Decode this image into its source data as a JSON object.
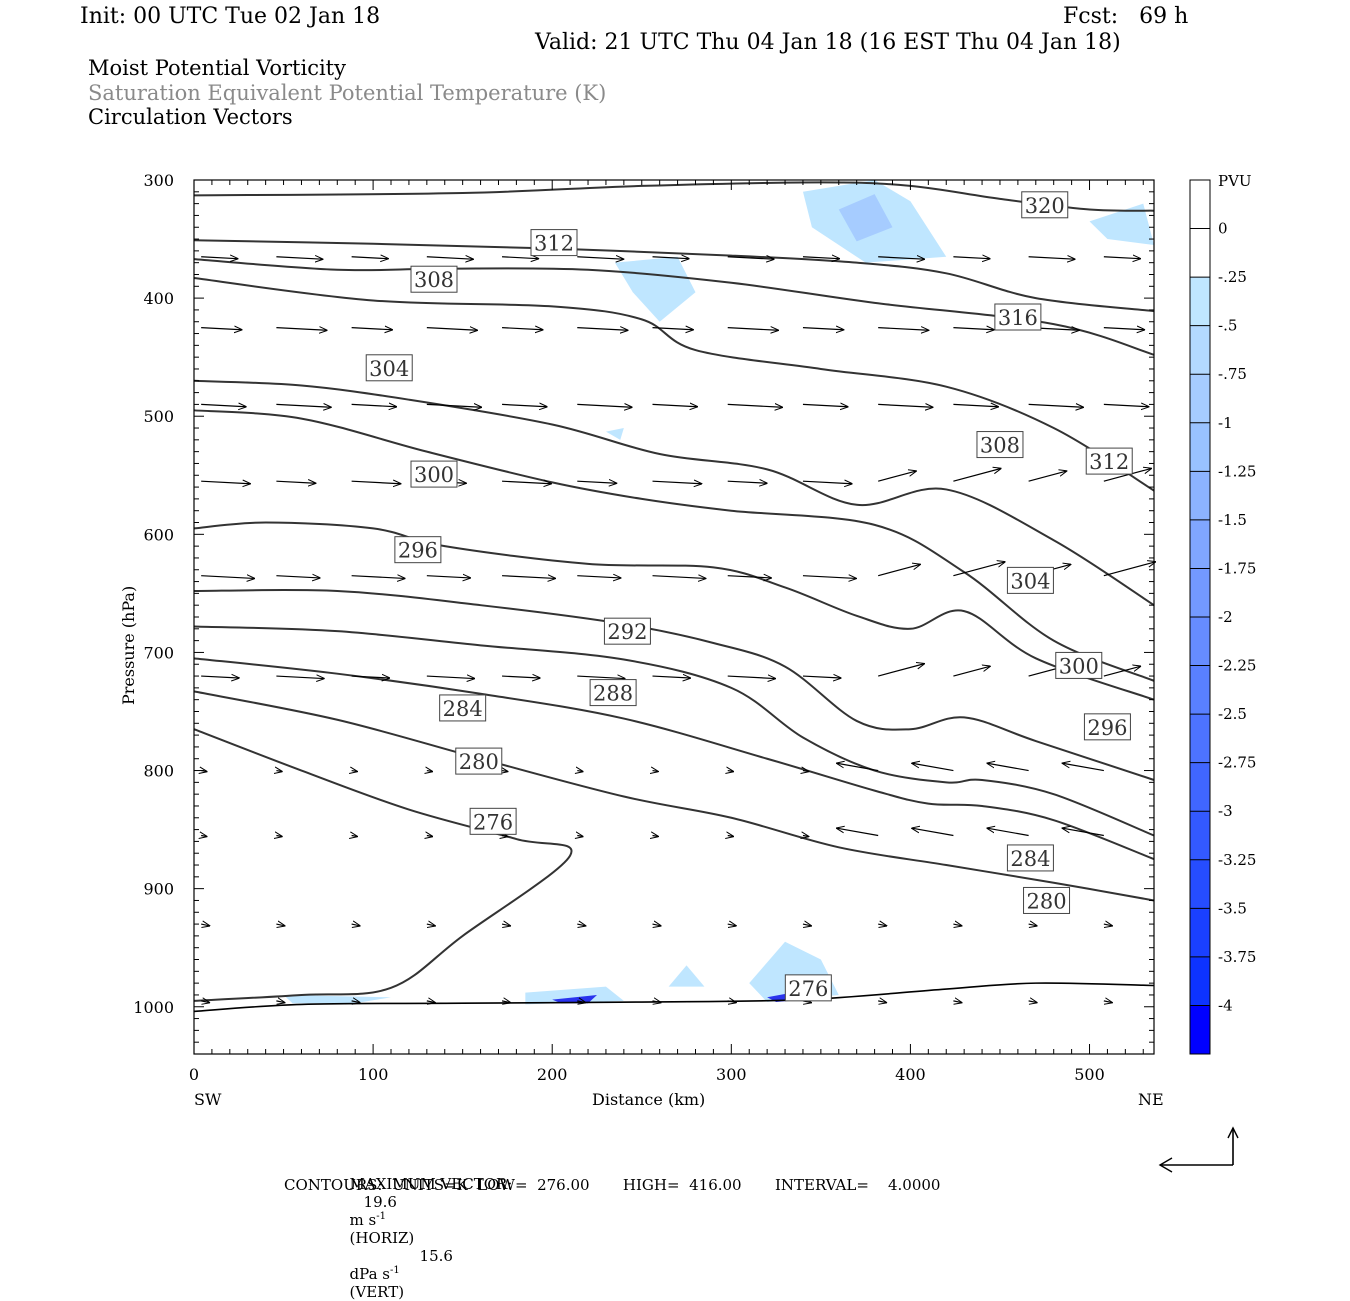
{
  "header": {
    "init": "Init: 00 UTC Tue 02 Jan 18",
    "fcst": "Fcst:   69 h",
    "valid": "Valid: 21 UTC Thu 04 Jan 18 (16 EST Thu 04 Jan 18)",
    "line1": "Moist Potential Vorticity",
    "line2": "Saturation Equivalent Potential Temperature (K)",
    "line3": "Circulation Vectors"
  },
  "footer": {
    "max_vector_label": "MAXIMUM VECTOR:",
    "horiz_value": "19.6",
    "horiz_unit": "m s",
    "horiz_tag": "(HORIZ)",
    "vert_value": "15.6",
    "vert_unit": "dPa s",
    "vert_tag": "(VERT)",
    "exp": "-1",
    "contours": "CONTOURS:  UNITS=K  LOW=  276.00       HIGH=  416.00       INTERVAL=    4.0000"
  },
  "chart_data": {
    "type": "cross-section",
    "xlabel": "Distance (km)",
    "ylabel": "Pressure (hPa)",
    "x_left_label": "SW",
    "x_right_label": "NE",
    "xlim": [
      0,
      536
    ],
    "ylim": [
      1040,
      300
    ],
    "x_ticks": [
      0,
      100,
      200,
      300,
      400,
      500
    ],
    "y_ticks": [
      300,
      400,
      500,
      600,
      700,
      800,
      900,
      1000
    ],
    "colorbar": {
      "unit": "PVU",
      "levels": [
        "0",
        "-.25",
        "-.5",
        "-.75",
        "-1",
        "-1.25",
        "-1.5",
        "-1.75",
        "-2",
        "-2.25",
        "-2.5",
        "-2.75",
        "-3",
        "-3.25",
        "-3.5",
        "-3.75",
        "-4"
      ],
      "colors": [
        "#ffffff",
        "#ffffff",
        "#bfe6ff",
        "#b3d9ff",
        "#a6ccff",
        "#99c2ff",
        "#8cb3ff",
        "#80a6ff",
        "#7399ff",
        "#668cff",
        "#5980ff",
        "#4d73ff",
        "#4066ff",
        "#3359ff",
        "#264dff",
        "#1a40ff",
        "#0d33ff",
        "#0000ff"
      ]
    },
    "contour_labels": [
      {
        "text": "320",
        "x": 475,
        "p": 321
      },
      {
        "text": "312",
        "x": 201,
        "p": 353
      },
      {
        "text": "308",
        "x": 134,
        "p": 384
      },
      {
        "text": "316",
        "x": 460,
        "p": 416
      },
      {
        "text": "304",
        "x": 109,
        "p": 459
      },
      {
        "text": "308",
        "x": 450,
        "p": 524
      },
      {
        "text": "312",
        "x": 511,
        "p": 538
      },
      {
        "text": "300",
        "x": 134,
        "p": 549
      },
      {
        "text": "296",
        "x": 125,
        "p": 613
      },
      {
        "text": "304",
        "x": 467,
        "p": 639
      },
      {
        "text": "292",
        "x": 242,
        "p": 682
      },
      {
        "text": "300",
        "x": 494,
        "p": 711
      },
      {
        "text": "288",
        "x": 234,
        "p": 734
      },
      {
        "text": "284",
        "x": 150,
        "p": 747
      },
      {
        "text": "296",
        "x": 510,
        "p": 763
      },
      {
        "text": "280",
        "x": 159,
        "p": 792
      },
      {
        "text": "276",
        "x": 167,
        "p": 843
      },
      {
        "text": "284",
        "x": 467,
        "p": 874
      },
      {
        "text": "280",
        "x": 476,
        "p": 910
      },
      {
        "text": "276",
        "x": 343,
        "p": 984
      }
    ],
    "theta_e_contours": [
      [
        [
          0,
          313
        ],
        [
          150,
          311
        ],
        [
          250,
          305
        ],
        [
          350,
          302
        ],
        [
          400,
          305
        ],
        [
          450,
          316
        ],
        [
          500,
          325
        ],
        [
          536,
          326
        ]
      ],
      [
        [
          0,
          351
        ],
        [
          100,
          354
        ],
        [
          200,
          358
        ],
        [
          300,
          364
        ],
        [
          370,
          370
        ],
        [
          420,
          379
        ],
        [
          470,
          400
        ],
        [
          536,
          411
        ]
      ],
      [
        [
          0,
          367
        ],
        [
          80,
          376
        ],
        [
          140,
          375
        ],
        [
          220,
          376
        ],
        [
          300,
          387
        ],
        [
          380,
          404
        ],
        [
          480,
          422
        ],
        [
          536,
          448
        ]
      ],
      [
        [
          0,
          383
        ],
        [
          100,
          402
        ],
        [
          200,
          407
        ],
        [
          250,
          418
        ],
        [
          280,
          444
        ],
        [
          350,
          460
        ],
        [
          420,
          475
        ],
        [
          480,
          510
        ],
        [
          536,
          563
        ]
      ],
      [
        [
          0,
          470
        ],
        [
          60,
          474
        ],
        [
          120,
          486
        ],
        [
          200,
          507
        ],
        [
          260,
          532
        ],
        [
          320,
          545
        ],
        [
          370,
          575
        ],
        [
          420,
          562
        ],
        [
          480,
          605
        ],
        [
          536,
          660
        ]
      ],
      [
        [
          0,
          495
        ],
        [
          60,
          502
        ],
        [
          130,
          530
        ],
        [
          200,
          556
        ],
        [
          250,
          570
        ],
        [
          300,
          580
        ],
        [
          380,
          592
        ],
        [
          430,
          632
        ],
        [
          480,
          690
        ],
        [
          536,
          724
        ]
      ],
      [
        [
          0,
          595
        ],
        [
          40,
          590
        ],
        [
          100,
          595
        ],
        [
          140,
          610
        ],
        [
          220,
          625
        ],
        [
          290,
          628
        ],
        [
          330,
          645
        ],
        [
          370,
          669
        ],
        [
          400,
          680
        ],
        [
          430,
          665
        ],
        [
          470,
          705
        ],
        [
          536,
          740
        ]
      ],
      [
        [
          0,
          648
        ],
        [
          80,
          648
        ],
        [
          160,
          660
        ],
        [
          240,
          676
        ],
        [
          290,
          692
        ],
        [
          330,
          712
        ],
        [
          370,
          758
        ],
        [
          400,
          765
        ],
        [
          430,
          755
        ],
        [
          470,
          775
        ],
        [
          536,
          808
        ]
      ],
      [
        [
          0,
          678
        ],
        [
          80,
          682
        ],
        [
          160,
          694
        ],
        [
          240,
          706
        ],
        [
          300,
          730
        ],
        [
          340,
          772
        ],
        [
          380,
          800
        ],
        [
          420,
          810
        ],
        [
          440,
          808
        ],
        [
          480,
          820
        ],
        [
          536,
          855
        ]
      ],
      [
        [
          0,
          705
        ],
        [
          80,
          718
        ],
        [
          160,
          735
        ],
        [
          240,
          756
        ],
        [
          320,
          790
        ],
        [
          380,
          817
        ],
        [
          410,
          828
        ],
        [
          440,
          830
        ],
        [
          480,
          842
        ],
        [
          536,
          875
        ]
      ],
      [
        [
          0,
          733
        ],
        [
          80,
          757
        ],
        [
          160,
          790
        ],
        [
          240,
          822
        ],
        [
          300,
          840
        ],
        [
          360,
          865
        ],
        [
          420,
          880
        ],
        [
          480,
          895
        ],
        [
          536,
          910
        ]
      ],
      [
        [
          0,
          765
        ],
        [
          60,
          800
        ],
        [
          120,
          833
        ],
        [
          180,
          858
        ],
        [
          210,
          872
        ],
        [
          150,
          940
        ],
        [
          110,
          984
        ],
        [
          60,
          990
        ],
        [
          0,
          995
        ]
      ]
    ],
    "pv_regions": [
      {
        "level": "-0.5",
        "points": [
          [
            235,
            370
          ],
          [
            270,
            365
          ],
          [
            280,
            395
          ],
          [
            260,
            420
          ],
          [
            245,
            395
          ]
        ]
      },
      {
        "level": "-0.5",
        "points": [
          [
            340,
            310
          ],
          [
            380,
            300
          ],
          [
            400,
            318
          ],
          [
            420,
            365
          ],
          [
            375,
            370
          ],
          [
            345,
            340
          ]
        ]
      },
      {
        "level": "-0.75",
        "points": [
          [
            360,
            325
          ],
          [
            380,
            312
          ],
          [
            390,
            340
          ],
          [
            370,
            352
          ]
        ]
      },
      {
        "level": "-0.5",
        "points": [
          [
            500,
            335
          ],
          [
            530,
            320
          ],
          [
            536,
            355
          ],
          [
            510,
            350
          ]
        ]
      },
      {
        "level": "-0.5",
        "points": [
          [
            230,
            513
          ],
          [
            240,
            510
          ],
          [
            238,
            520
          ]
        ]
      },
      {
        "level": "-0.5",
        "points": [
          [
            50,
            990
          ],
          [
            110,
            992
          ],
          [
            90,
            997
          ],
          [
            55,
            997
          ]
        ]
      },
      {
        "level": "-0.5",
        "points": [
          [
            185,
            988
          ],
          [
            230,
            983
          ],
          [
            240,
            995
          ],
          [
            185,
            998
          ]
        ]
      },
      {
        "level": "-3.25",
        "points": [
          [
            200,
            994
          ],
          [
            225,
            990
          ],
          [
            220,
            997
          ],
          [
            205,
            997
          ]
        ]
      },
      {
        "level": "-0.5",
        "points": [
          [
            265,
            983
          ],
          [
            275,
            965
          ],
          [
            285,
            983
          ]
        ]
      },
      {
        "level": "-0.5",
        "points": [
          [
            310,
            980
          ],
          [
            330,
            945
          ],
          [
            350,
            960
          ],
          [
            360,
            990
          ],
          [
            320,
            996
          ]
        ]
      },
      {
        "level": "-3.25",
        "points": [
          [
            320,
            992
          ],
          [
            345,
            985
          ],
          [
            355,
            992
          ],
          [
            325,
            996
          ]
        ]
      }
    ]
  }
}
